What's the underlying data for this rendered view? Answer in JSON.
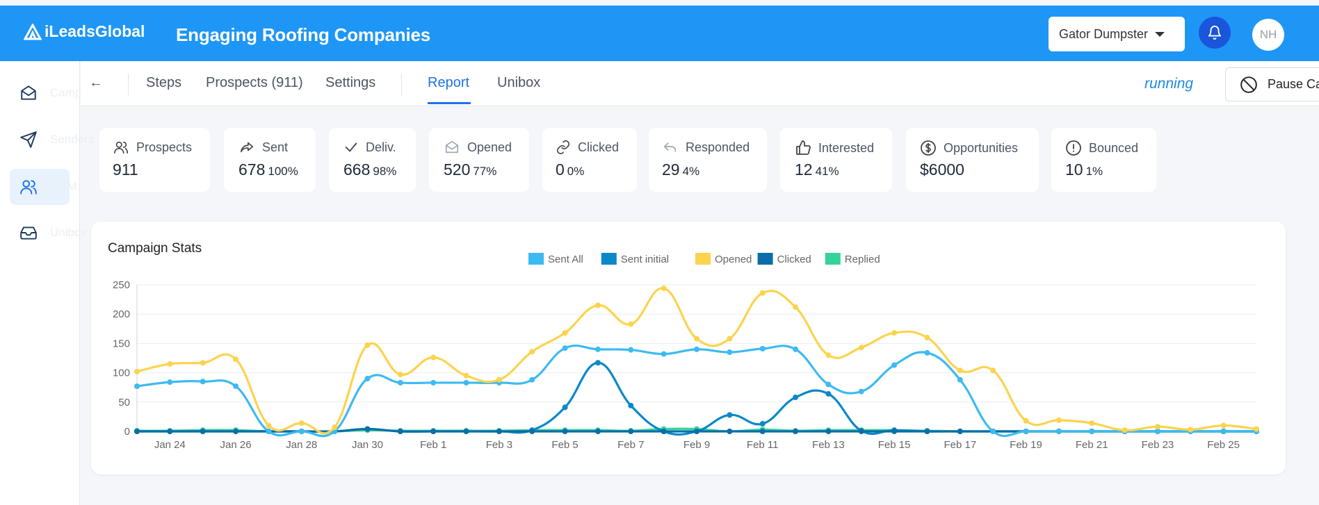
{
  "header": {
    "logo_text": "iLeadsGlobal",
    "title": "Engaging Roofing Companies",
    "account": "Gator Dumpster",
    "avatar_initials": "NH",
    "brand_color": "#1e96f5"
  },
  "sidebar": {
    "items": [
      {
        "label": "Campaigns",
        "icon": "mail-icon"
      },
      {
        "label": "Senders",
        "icon": "send-icon"
      },
      {
        "label": "CRM",
        "icon": "users-icon",
        "active": true
      },
      {
        "label": "Unibox",
        "icon": "inbox-icon"
      }
    ]
  },
  "subnav": {
    "back": "←",
    "tabs": [
      "Steps",
      "Prospects (911)",
      "Settings",
      "Report",
      "Unibox"
    ],
    "active_tab": "Report",
    "status": "running",
    "pause_label": "Pause Campaign"
  },
  "stats": [
    {
      "label": "Prospects",
      "value": "911",
      "pct": "",
      "icon": "users-icon"
    },
    {
      "label": "Sent",
      "value": "678",
      "pct": "100%",
      "icon": "share-icon"
    },
    {
      "label": "Deliv.",
      "value": "668",
      "pct": "98%",
      "icon": "check-icon"
    },
    {
      "label": "Opened",
      "value": "520",
      "pct": "77%",
      "icon": "open-mail-icon"
    },
    {
      "label": "Clicked",
      "value": "0",
      "pct": "0%",
      "icon": "link-icon"
    },
    {
      "label": "Responded",
      "value": "29",
      "pct": "4%",
      "icon": "reply-icon"
    },
    {
      "label": "Interested",
      "value": "12",
      "pct": "41%",
      "icon": "thumbs-up-icon"
    },
    {
      "label": "Opportunities",
      "value": "$6000",
      "pct": "",
      "icon": "dollar-icon"
    },
    {
      "label": "Bounced",
      "value": "10",
      "pct": "1%",
      "icon": "alert-icon"
    }
  ],
  "chart_title": "Campaign Stats",
  "chart_data": {
    "type": "line",
    "ylim": [
      0,
      250
    ],
    "yticks": [
      0,
      50,
      100,
      150,
      200,
      250
    ],
    "x": [
      "Jan 23",
      "Jan 24",
      "Jan 25",
      "Jan 26",
      "Jan 27",
      "Jan 28",
      "Jan 29",
      "Jan 30",
      "Jan 31",
      "Feb 1",
      "Feb 2",
      "Feb 3",
      "Feb 4",
      "Feb 5",
      "Feb 6",
      "Feb 7",
      "Feb 8",
      "Feb 9",
      "Feb 10",
      "Feb 11",
      "Feb 12",
      "Feb 13",
      "Feb 14",
      "Feb 15",
      "Feb 16",
      "Feb 17",
      "Feb 18",
      "Feb 19",
      "Feb 20",
      "Feb 21",
      "Feb 22",
      "Feb 23",
      "Feb 24",
      "Feb 25",
      "Feb 26"
    ],
    "xtick_labels": [
      "Jan 24",
      "Jan 26",
      "Jan 28",
      "Jan 30",
      "Feb 1",
      "Feb 3",
      "Feb 5",
      "Feb 7",
      "Feb 9",
      "Feb 11",
      "Feb 13",
      "Feb 15",
      "Feb 17",
      "Feb 19",
      "Feb 21",
      "Feb 23",
      "Feb 25"
    ],
    "grid": true,
    "legend_position": "top-center",
    "series": [
      {
        "name": "Sent All",
        "color": "#3dbaf2",
        "values": [
          77,
          84,
          85,
          77,
          0,
          0,
          0,
          90,
          83,
          83,
          83,
          83,
          88,
          142,
          140,
          139,
          132,
          140,
          135,
          141,
          140,
          80,
          68,
          113,
          134,
          88,
          0,
          0,
          0,
          0,
          0,
          0,
          0,
          0,
          0
        ]
      },
      {
        "name": "Sent initial",
        "color": "#0a88c9",
        "values": [
          0,
          0,
          0,
          0,
          0,
          0,
          0,
          4,
          0,
          0,
          0,
          0,
          2,
          41,
          117,
          44,
          0,
          0,
          28,
          13,
          58,
          64,
          1,
          2,
          0,
          0,
          0,
          0,
          0,
          0,
          0,
          0,
          0,
          0,
          0
        ]
      },
      {
        "name": "Opened",
        "color": "#fcd34d",
        "values": [
          102,
          115,
          117,
          123,
          10,
          14,
          7,
          147,
          97,
          126,
          95,
          88,
          136,
          168,
          215,
          183,
          244,
          158,
          158,
          236,
          212,
          130,
          143,
          168,
          160,
          104,
          104,
          18,
          19,
          14,
          2,
          8,
          3,
          10,
          4
        ]
      },
      {
        "name": "Clicked",
        "color": "#0b6ea8",
        "values": [
          0,
          0,
          0,
          0,
          0,
          0,
          0,
          4,
          0,
          0,
          0,
          0,
          0,
          0,
          0,
          0,
          0,
          0,
          0,
          0,
          0,
          0,
          0,
          0,
          0,
          0,
          0,
          0,
          0,
          0,
          0,
          0,
          0,
          0,
          0
        ]
      },
      {
        "name": "Replied",
        "color": "#34d399",
        "values": [
          1,
          1,
          2,
          2,
          0,
          0,
          0,
          2,
          1,
          1,
          1,
          1,
          2,
          2,
          2,
          1,
          4,
          4,
          0,
          3,
          1,
          2,
          2,
          2,
          1,
          0,
          0,
          0,
          0,
          0,
          0,
          0,
          0,
          0,
          0
        ]
      }
    ]
  }
}
